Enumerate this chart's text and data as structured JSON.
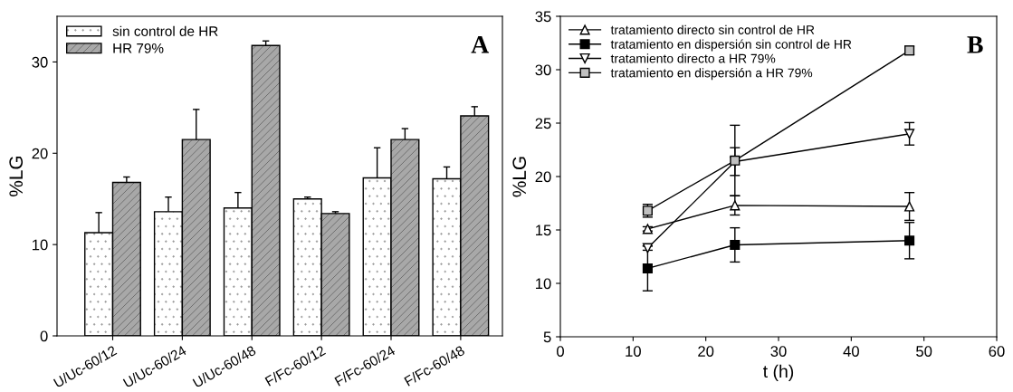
{
  "chart_data": [
    {
      "type": "bar",
      "ylabel": "%LG",
      "categories": [
        "U/Uc-60/12",
        "U/Uc-60/24",
        "U/Uc-60/48",
        "F/Fc-60/12",
        "F/Fc-60/24",
        "F/Fc-60/48"
      ],
      "ylim": [
        0,
        35
      ],
      "yticks": [
        0,
        10,
        20,
        30
      ],
      "legend": "top left",
      "grid": false,
      "annotations": [
        "A"
      ],
      "series": [
        {
          "name": "sin control de HR",
          "color": "#ffffff",
          "values": [
            11.3,
            13.6,
            14.0,
            15.0,
            17.3,
            17.2
          ],
          "errors": [
            [
              11.3,
              13.5
            ],
            [
              13.6,
              15.2
            ],
            [
              14.0,
              15.7
            ],
            [
              15.0,
              15.2
            ],
            [
              17.3,
              20.6
            ],
            [
              17.2,
              18.5
            ]
          ]
        },
        {
          "name": "HR 79%",
          "color": "#a8a8a8",
          "values": [
            16.8,
            21.5,
            31.8,
            13.4,
            21.5,
            24.1
          ],
          "errors": [
            [
              16.8,
              17.4
            ],
            [
              21.5,
              24.8
            ],
            [
              31.8,
              32.3
            ],
            [
              13.4,
              13.6
            ],
            [
              21.5,
              22.7
            ],
            [
              24.1,
              25.1
            ]
          ]
        }
      ]
    },
    {
      "type": "line",
      "xlabel": "t (h)",
      "ylabel": "%LG",
      "x": [
        12,
        24,
        48
      ],
      "xlim": [
        0,
        60
      ],
      "xticks": [
        0,
        10,
        20,
        30,
        40,
        50,
        60
      ],
      "ylim": [
        5,
        35
      ],
      "yticks": [
        5,
        10,
        15,
        20,
        25,
        30,
        35
      ],
      "legend": "top left",
      "grid": false,
      "line_style": "solid",
      "annotations": [
        "B"
      ],
      "series": [
        {
          "name": "tratamiento directo sin control de HR",
          "color": "#ffffff",
          "marker": "triangle",
          "values": [
            15.1,
            17.3,
            17.2
          ],
          "errors": [
            0.2,
            0.9,
            1.3
          ]
        },
        {
          "name": "tratamiento en dispersión sin control de HR",
          "color": "#000000",
          "marker": "square",
          "values": [
            11.4,
            13.6,
            14.0
          ],
          "errors": [
            2.1,
            1.6,
            1.7
          ]
        },
        {
          "name": "tratamiento directo a HR 79%",
          "color": "#ffffff",
          "marker": "triangle_down",
          "values": [
            13.3,
            21.4,
            24.0
          ],
          "errors": [
            0.2,
            1.3,
            1.05
          ]
        },
        {
          "name": "tratamiento en dispersión a HR 79%",
          "color": "#c0c0c0",
          "marker": "square",
          "values": [
            16.8,
            21.5,
            31.8
          ],
          "errors": [
            0.6,
            3.3,
            0.4
          ]
        }
      ]
    }
  ]
}
